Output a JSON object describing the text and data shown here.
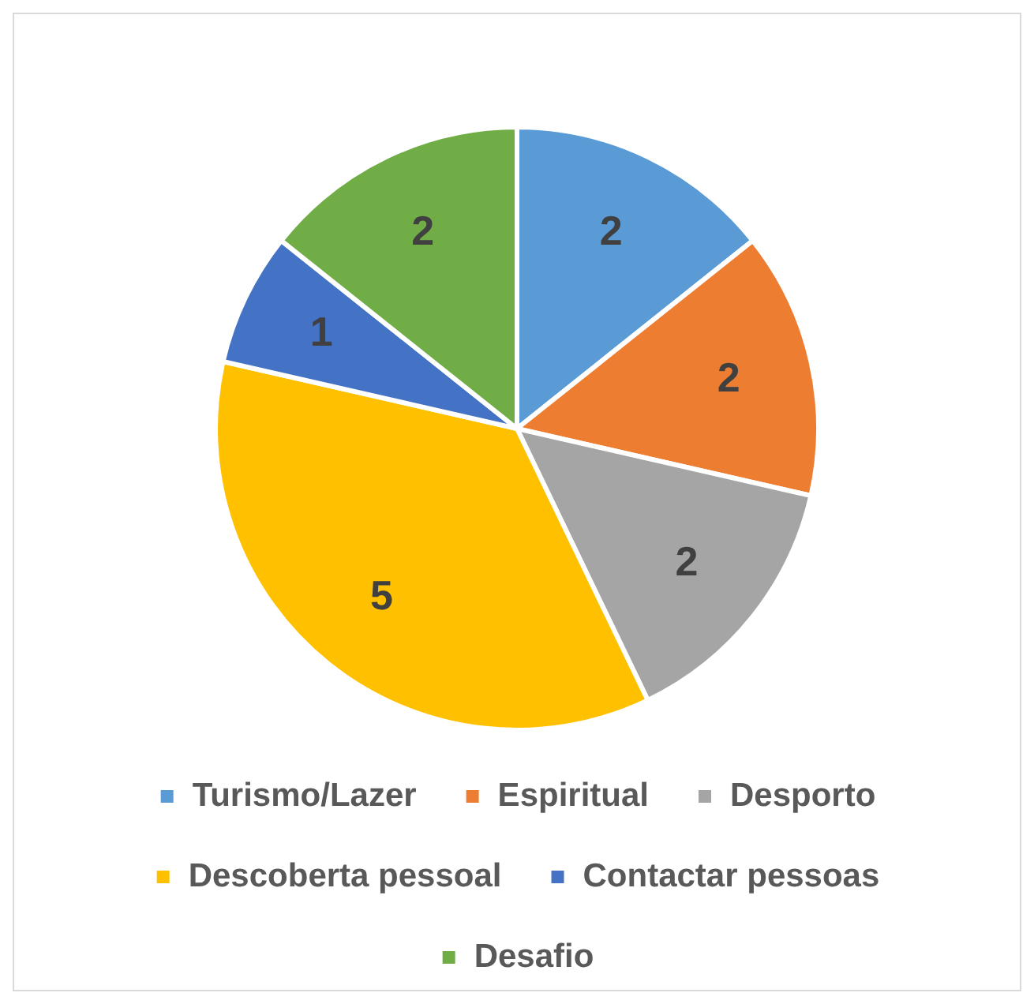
{
  "chart_data": {
    "type": "pie",
    "categories": [
      "Turismo/Lazer",
      "Espiritual",
      "Desporto",
      "Descoberta pessoal",
      "Contactar pessoas",
      "Desafio"
    ],
    "values": [
      2,
      2,
      2,
      5,
      1,
      2
    ],
    "colors": [
      "#5b9bd5",
      "#ed7d31",
      "#a5a5a5",
      "#ffc000",
      "#4472c4",
      "#70ad47"
    ],
    "data_labels": true,
    "legend": "bottom"
  }
}
